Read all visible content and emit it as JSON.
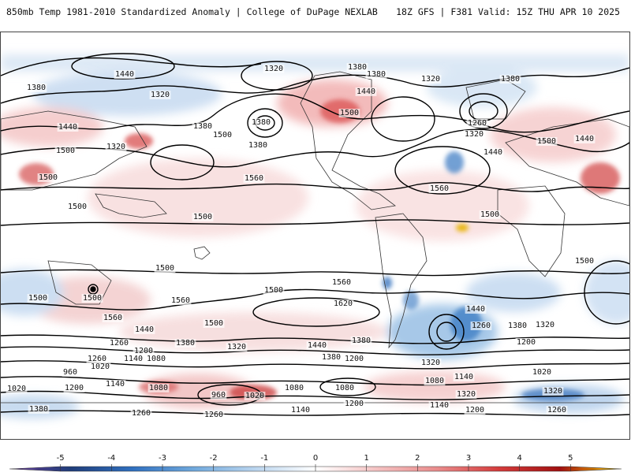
{
  "header": {
    "title_left": "850mb Temp 1981-2010 Standardized Anomaly | College of DuPage NEXLAB",
    "title_right": "18Z GFS | F381 Valid: 15Z THU APR 10 2025"
  },
  "colorbar": {
    "ticks": [
      "-5",
      "-4",
      "-3",
      "-2",
      "-1",
      "0",
      "1",
      "2",
      "3",
      "4",
      "5"
    ],
    "colors": [
      "#6a3d9a",
      "#1f3d7a",
      "#2f6fbf",
      "#6fa8dc",
      "#b9d4ee",
      "#ffffff",
      "#f4c2c2",
      "#e98b8b",
      "#d43b3b",
      "#a01010",
      "#ffd400"
    ]
  },
  "contour_labels": [
    "1440",
    "1320",
    "1380",
    "1380",
    "1320",
    "1380",
    "1380",
    "1440",
    "1500",
    "1380",
    "1320",
    "1260",
    "1320",
    "1380",
    "1440",
    "1500",
    "1380",
    "1500",
    "1320",
    "1500",
    "1440",
    "1560",
    "1500",
    "1560",
    "1500",
    "1440",
    "1500",
    "1500",
    "1500",
    "1560",
    "1500",
    "1500",
    "1500",
    "1560",
    "1620",
    "1500",
    "1440",
    "1260",
    "1380",
    "1560",
    "1440",
    "1500",
    "1380",
    "1320",
    "1260",
    "1380",
    "1320",
    "1440",
    "1380",
    "1200",
    "1200",
    "1260",
    "1200",
    "1320",
    "1140",
    "1080",
    "1020",
    "960",
    "1140",
    "1200",
    "1080",
    "1080",
    "960",
    "1020",
    "1080",
    "1020",
    "1140",
    "1080",
    "1320",
    "1380",
    "1320",
    "1260",
    "1140",
    "1200",
    "1260",
    "1200",
    "1140",
    "1020",
    "1260"
  ]
}
